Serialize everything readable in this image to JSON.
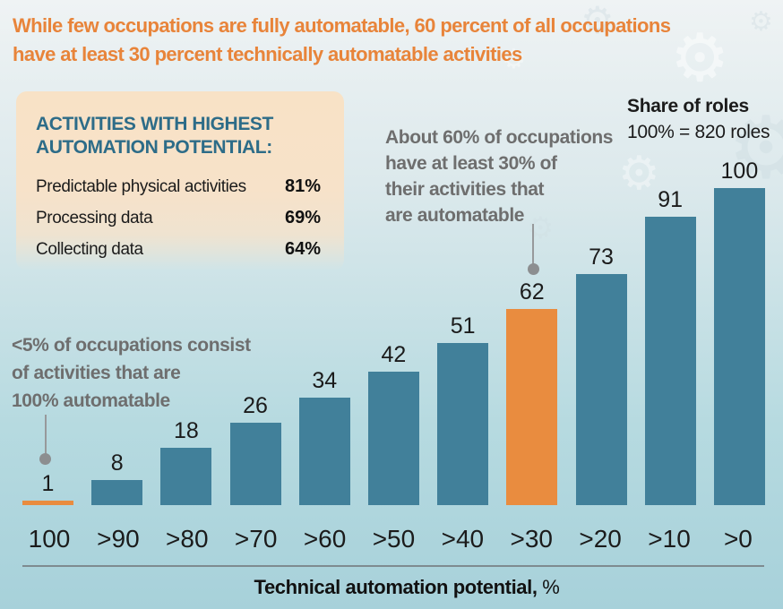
{
  "title": "While few occupations are fully automatable, 60 percent of all occupations\nhave at least 30 percent technically automatable activities",
  "callout_box": {
    "heading": "ACTIVITIES WITH HIGHEST\nAUTOMATION POTENTIAL:",
    "heading_color": "#2D6C88",
    "items": [
      {
        "label": "Predictable physical activities",
        "value": "81%"
      },
      {
        "label": "Processing data",
        "value": "69%"
      },
      {
        "label": "Collecting data",
        "value": "64%"
      }
    ]
  },
  "share_of_roles": {
    "line1": "Share of roles",
    "line2": "100% = 820 roles"
  },
  "annotations": {
    "top": "About 60% of occupations\nhave at least 30% of\ntheir activities that\nare automatable",
    "left": "<5% of occupations consist\nof activities that are\n100% automatable"
  },
  "axis": {
    "title_main": "Technical automation potential,",
    "title_unit": "%"
  },
  "icons": {
    "gear": "⚙"
  },
  "colors": {
    "title_orange": "#E8843A",
    "bar_teal": "#41809A",
    "bar_orange": "#E98C3F",
    "note_gray": "#6E6E6E",
    "heading_teal": "#2D6C88"
  },
  "chart_data": {
    "type": "bar",
    "title": "While few occupations are fully automatable, 60 percent of all occupations have at least 30 percent technically automatable activities",
    "categories": [
      "100",
      ">90",
      ">80",
      ">70",
      ">60",
      ">50",
      ">40",
      ">30",
      ">20",
      ">10",
      ">0"
    ],
    "values": [
      1,
      8,
      18,
      26,
      34,
      42,
      51,
      62,
      73,
      91,
      100
    ],
    "xlabel": "Technical automation potential, %",
    "ylabel": "Share of roles, 100% = 820 roles",
    "ylim": [
      0,
      100
    ],
    "grid": false,
    "legend_position": "none",
    "bar_color": "#41809A",
    "highlight_color": "#E98C3F",
    "highlighted_categories": [
      "100",
      ">30"
    ],
    "annotations": [
      {
        "target_category": "100",
        "text": "<5% of occupations consist of activities that are 100% automatable"
      },
      {
        "target_category": ">30",
        "text": "About 60% of occupations have at least 30% of their activities that are automatable"
      }
    ]
  }
}
